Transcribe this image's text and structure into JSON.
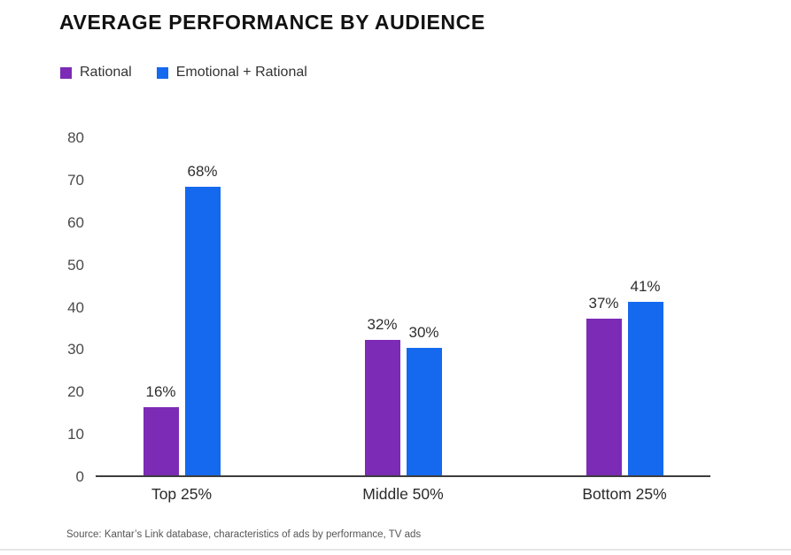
{
  "page": {
    "title": "AVERAGE PERFORMANCE BY AUDIENCE",
    "source": "Source: Kantar’s Link database, characteristics of ads by performance, TV ads"
  },
  "chart_data": {
    "type": "bar",
    "title": "AVERAGE PERFORMANCE BY AUDIENCE",
    "categories": [
      "Top 25%",
      "Middle 50%",
      "Bottom 25%"
    ],
    "series": [
      {
        "name": "Rational",
        "color": "#7b2bb5",
        "values": [
          16,
          32,
          37
        ],
        "data_labels": [
          "16%",
          "32%",
          "37%"
        ]
      },
      {
        "name": "Emotional + Rational",
        "color": "#1569ef",
        "values": [
          68,
          30,
          41
        ],
        "data_labels": [
          "68%",
          "30%",
          "41%"
        ]
      }
    ],
    "xlabel": "",
    "ylabel": "",
    "ylim": [
      0,
      80
    ],
    "yticks": [
      0,
      10,
      20,
      30,
      40,
      50,
      60,
      70,
      80
    ],
    "grid": false,
    "legend_position": "top-left",
    "value_unit": "%"
  }
}
